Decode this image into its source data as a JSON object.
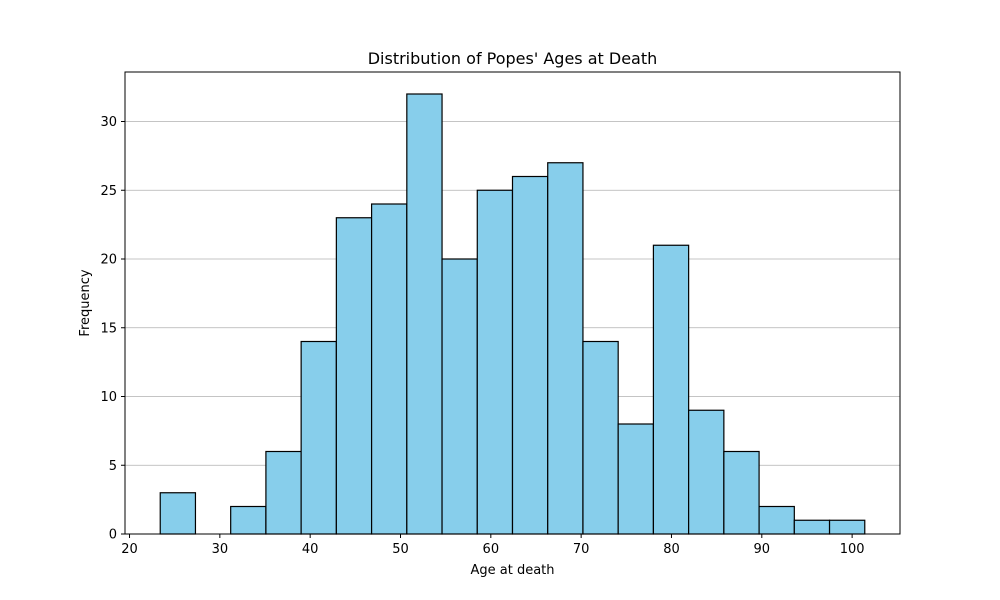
{
  "chart_data": {
    "type": "bar",
    "title": "Distribution of Popes' Ages at Death",
    "xlabel": "Age at death",
    "ylabel": "Frequency",
    "bin_edges": [
      23.4,
      27.3,
      31.2,
      35.1,
      39.0,
      42.9,
      46.8,
      50.7,
      54.6,
      58.5,
      62.4,
      66.3,
      70.2,
      74.1,
      78.0,
      81.9,
      85.8,
      89.7,
      93.6,
      97.5,
      101.4
    ],
    "values": [
      3,
      0,
      2,
      6,
      14,
      23,
      24,
      32,
      20,
      25,
      26,
      27,
      14,
      8,
      21,
      9,
      6,
      2,
      1,
      1
    ],
    "xlim": [
      19.5,
      105.3
    ],
    "ylim": [
      0,
      33.6
    ],
    "xticks": [
      20,
      30,
      40,
      50,
      60,
      70,
      80,
      90,
      100
    ],
    "yticks": [
      0,
      5,
      10,
      15,
      20,
      25,
      30
    ],
    "grid": "y",
    "bar_color": "#87ceeb",
    "edge_color": "#000000"
  }
}
